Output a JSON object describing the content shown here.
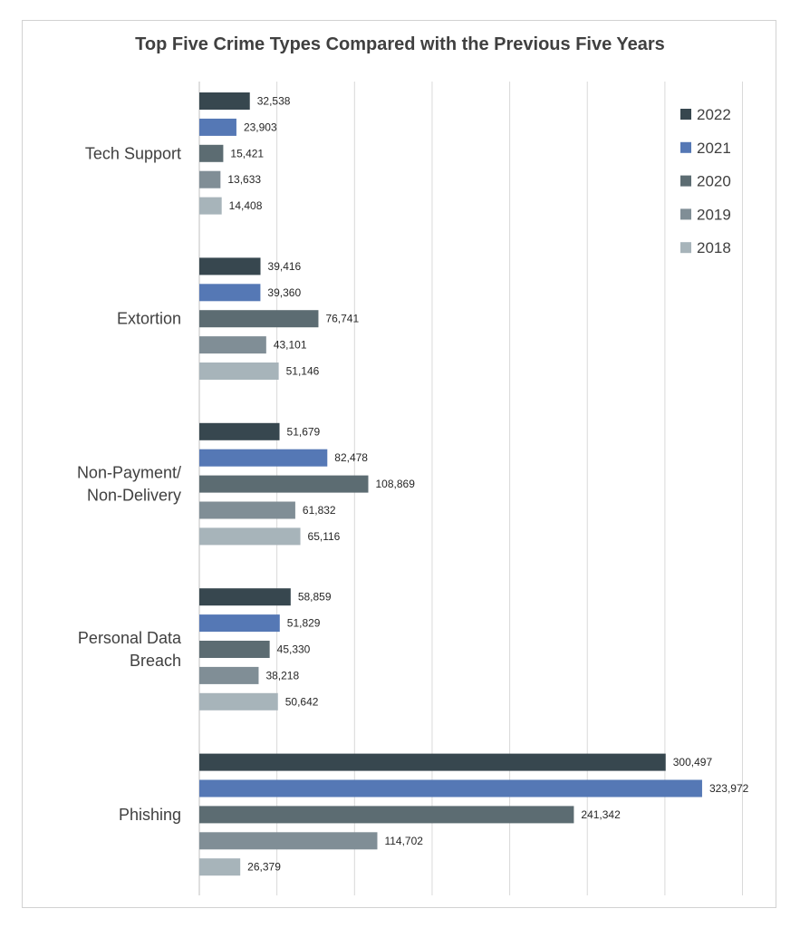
{
  "chart_data": {
    "type": "bar",
    "orientation": "horizontal",
    "title": "Top Five Crime Types Compared with the Previous Five Years",
    "categories": [
      [
        "Tech Support"
      ],
      [
        "Extortion"
      ],
      [
        "Non-Payment/",
        "Non-Delivery"
      ],
      [
        "Personal Data",
        "Breach"
      ],
      [
        "Phishing"
      ]
    ],
    "series": [
      {
        "name": "2022",
        "color": "#37474f",
        "values": [
          32538,
          39416,
          51679,
          58859,
          300497
        ],
        "labels": [
          "32,538",
          "39,416",
          "51,679",
          "58,859",
          "300,497"
        ]
      },
      {
        "name": "2021",
        "color": "#5578b5",
        "values": [
          23903,
          39360,
          82478,
          51829,
          323972
        ],
        "labels": [
          "23,903",
          "39,360",
          "82,478",
          "51,829",
          "323,972"
        ]
      },
      {
        "name": "2020",
        "color": "#5c6c72",
        "values": [
          15421,
          76741,
          108869,
          45330,
          241342
        ],
        "labels": [
          "15,421",
          "76,741",
          "108,869",
          "45,330",
          "241,342"
        ]
      },
      {
        "name": "2019",
        "color": "#808e96",
        "values": [
          13633,
          43101,
          61832,
          38218,
          114702
        ],
        "labels": [
          "13,633",
          "43,101",
          "61,832",
          "38,218",
          "114,702"
        ]
      },
      {
        "name": "2018",
        "color": "#a7b4ba",
        "values": [
          14408,
          51146,
          65116,
          50642,
          26379
        ],
        "labels": [
          "14,408",
          "51,146",
          "65,116",
          "50,642",
          "26,379"
        ]
      }
    ],
    "xlim": [
      0,
      350000
    ],
    "grid": true,
    "legend_position": "top-right"
  }
}
